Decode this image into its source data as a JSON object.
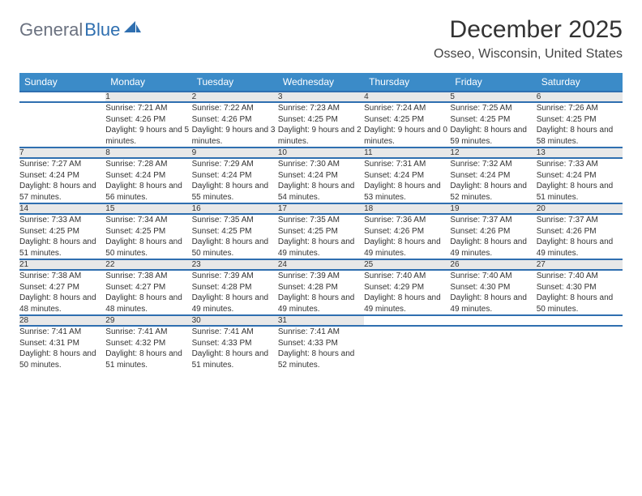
{
  "brand": {
    "part1": "General",
    "part2": "Blue"
  },
  "title": "December 2025",
  "location": "Osseo, Wisconsin, United States",
  "colors": {
    "header_bg": "#3b8bc8",
    "header_text": "#ffffff",
    "row_divider": "#2f6fb0",
    "daynum_bg": "#e8e8e8",
    "text": "#333333",
    "brand_gray": "#6b7280",
    "brand_blue": "#2f6fb0"
  },
  "weekdays": [
    "Sunday",
    "Monday",
    "Tuesday",
    "Wednesday",
    "Thursday",
    "Friday",
    "Saturday"
  ],
  "weeks": [
    [
      null,
      {
        "n": "1",
        "sr": "7:21 AM",
        "ss": "4:26 PM",
        "dl": "9 hours and 5 minutes."
      },
      {
        "n": "2",
        "sr": "7:22 AM",
        "ss": "4:26 PM",
        "dl": "9 hours and 3 minutes."
      },
      {
        "n": "3",
        "sr": "7:23 AM",
        "ss": "4:25 PM",
        "dl": "9 hours and 2 minutes."
      },
      {
        "n": "4",
        "sr": "7:24 AM",
        "ss": "4:25 PM",
        "dl": "9 hours and 0 minutes."
      },
      {
        "n": "5",
        "sr": "7:25 AM",
        "ss": "4:25 PM",
        "dl": "8 hours and 59 minutes."
      },
      {
        "n": "6",
        "sr": "7:26 AM",
        "ss": "4:25 PM",
        "dl": "8 hours and 58 minutes."
      }
    ],
    [
      {
        "n": "7",
        "sr": "7:27 AM",
        "ss": "4:24 PM",
        "dl": "8 hours and 57 minutes."
      },
      {
        "n": "8",
        "sr": "7:28 AM",
        "ss": "4:24 PM",
        "dl": "8 hours and 56 minutes."
      },
      {
        "n": "9",
        "sr": "7:29 AM",
        "ss": "4:24 PM",
        "dl": "8 hours and 55 minutes."
      },
      {
        "n": "10",
        "sr": "7:30 AM",
        "ss": "4:24 PM",
        "dl": "8 hours and 54 minutes."
      },
      {
        "n": "11",
        "sr": "7:31 AM",
        "ss": "4:24 PM",
        "dl": "8 hours and 53 minutes."
      },
      {
        "n": "12",
        "sr": "7:32 AM",
        "ss": "4:24 PM",
        "dl": "8 hours and 52 minutes."
      },
      {
        "n": "13",
        "sr": "7:33 AM",
        "ss": "4:24 PM",
        "dl": "8 hours and 51 minutes."
      }
    ],
    [
      {
        "n": "14",
        "sr": "7:33 AM",
        "ss": "4:25 PM",
        "dl": "8 hours and 51 minutes."
      },
      {
        "n": "15",
        "sr": "7:34 AM",
        "ss": "4:25 PM",
        "dl": "8 hours and 50 minutes."
      },
      {
        "n": "16",
        "sr": "7:35 AM",
        "ss": "4:25 PM",
        "dl": "8 hours and 50 minutes."
      },
      {
        "n": "17",
        "sr": "7:35 AM",
        "ss": "4:25 PM",
        "dl": "8 hours and 49 minutes."
      },
      {
        "n": "18",
        "sr": "7:36 AM",
        "ss": "4:26 PM",
        "dl": "8 hours and 49 minutes."
      },
      {
        "n": "19",
        "sr": "7:37 AM",
        "ss": "4:26 PM",
        "dl": "8 hours and 49 minutes."
      },
      {
        "n": "20",
        "sr": "7:37 AM",
        "ss": "4:26 PM",
        "dl": "8 hours and 49 minutes."
      }
    ],
    [
      {
        "n": "21",
        "sr": "7:38 AM",
        "ss": "4:27 PM",
        "dl": "8 hours and 48 minutes."
      },
      {
        "n": "22",
        "sr": "7:38 AM",
        "ss": "4:27 PM",
        "dl": "8 hours and 48 minutes."
      },
      {
        "n": "23",
        "sr": "7:39 AM",
        "ss": "4:28 PM",
        "dl": "8 hours and 49 minutes."
      },
      {
        "n": "24",
        "sr": "7:39 AM",
        "ss": "4:28 PM",
        "dl": "8 hours and 49 minutes."
      },
      {
        "n": "25",
        "sr": "7:40 AM",
        "ss": "4:29 PM",
        "dl": "8 hours and 49 minutes."
      },
      {
        "n": "26",
        "sr": "7:40 AM",
        "ss": "4:30 PM",
        "dl": "8 hours and 49 minutes."
      },
      {
        "n": "27",
        "sr": "7:40 AM",
        "ss": "4:30 PM",
        "dl": "8 hours and 50 minutes."
      }
    ],
    [
      {
        "n": "28",
        "sr": "7:41 AM",
        "ss": "4:31 PM",
        "dl": "8 hours and 50 minutes."
      },
      {
        "n": "29",
        "sr": "7:41 AM",
        "ss": "4:32 PM",
        "dl": "8 hours and 51 minutes."
      },
      {
        "n": "30",
        "sr": "7:41 AM",
        "ss": "4:33 PM",
        "dl": "8 hours and 51 minutes."
      },
      {
        "n": "31",
        "sr": "7:41 AM",
        "ss": "4:33 PM",
        "dl": "8 hours and 52 minutes."
      },
      null,
      null,
      null
    ]
  ],
  "labels": {
    "sunrise": "Sunrise:",
    "sunset": "Sunset:",
    "daylight": "Daylight:"
  }
}
